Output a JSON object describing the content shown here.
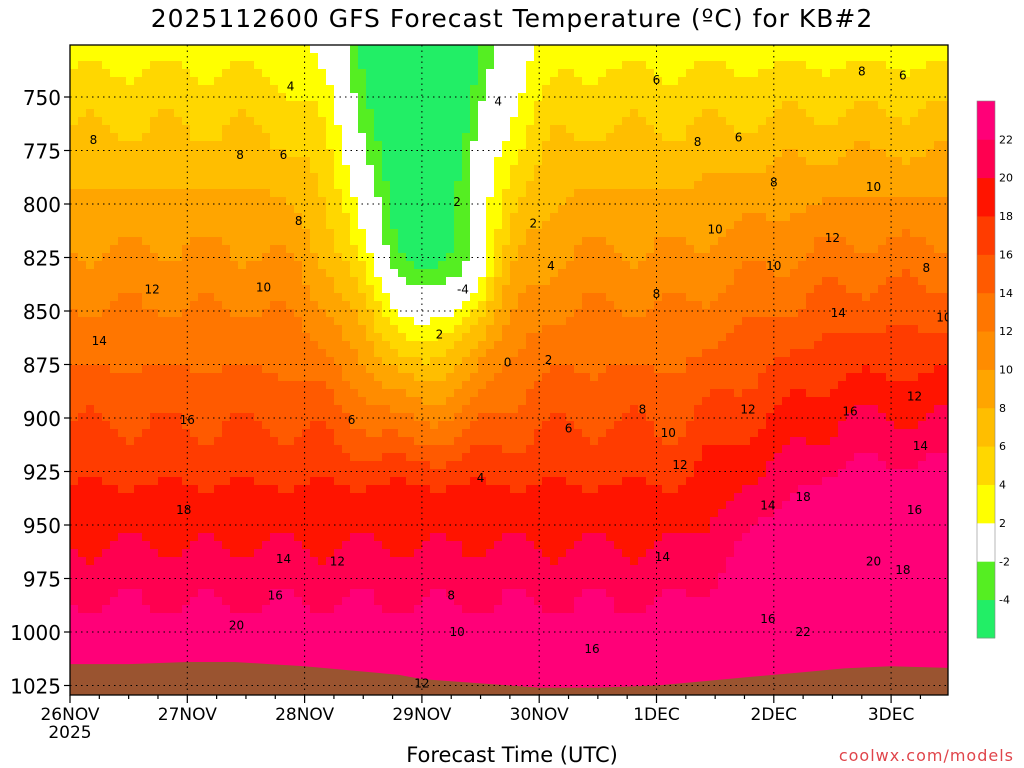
{
  "title": "2025112600 GFS Forecast Temperature (ºC) for KB#2",
  "xlabel": "Forecast Time (UTC)",
  "credit": "coolwx.com/models",
  "colors": {
    "ground": "#9a5430",
    "contour": "#000000",
    "freezing_contour": "#b0147a",
    "grid": "#000000"
  },
  "chart_data": {
    "type": "heatmap",
    "title": "2025112600 GFS Forecast Temperature (ºC) for KB#2",
    "xlabel": "Forecast Time (UTC)",
    "ylabel": "",
    "x_ticks": [
      "26NOV",
      "27NOV",
      "28NOV",
      "29NOV",
      "30NOV",
      "1DEC",
      "2DEC",
      "3DEC"
    ],
    "x_year_label": "2025",
    "xlim": [
      0,
      7.65
    ],
    "y_ticks": [
      750,
      775,
      800,
      825,
      850,
      875,
      900,
      925,
      950,
      975,
      1000,
      1025
    ],
    "ylim": [
      1028,
      730
    ],
    "grid": true,
    "colorbar": {
      "levels": [
        -6,
        -4,
        -2,
        2,
        4,
        6,
        8,
        10,
        12,
        14,
        16,
        18,
        20,
        22,
        24
      ],
      "colors": [
        "#22ee66",
        "#55ee22",
        "#ffffff",
        "#ffff00",
        "#ffd700",
        "#ffbe00",
        "#ffa500",
        "#ff8c00",
        "#ff7600",
        "#ff5a00",
        "#ff3c00",
        "#ff1400",
        "#ff0050",
        "#ff0078"
      ],
      "tick_labels": [
        "22",
        "20",
        "18",
        "16",
        "14",
        "12",
        "10",
        "8",
        "6",
        "4",
        "2",
        "-2",
        "-4"
      ]
    },
    "surface_pressure_hpa": [
      1015,
      1015,
      1014,
      1014,
      1015,
      1016,
      1018,
      1020,
      1022,
      1024,
      1026,
      1026,
      1025,
      1023,
      1021,
      1019,
      1017,
      1016,
      1017
    ],
    "surface_x_days": [
      0,
      0.5,
      1,
      1.4,
      1.7,
      2,
      2.4,
      2.8,
      3,
      3.5,
      4,
      4.5,
      5,
      5.4,
      5.8,
      6.2,
      6.6,
      7,
      7.65
    ],
    "contour_labels": [
      {
        "t": 1.88,
        "p": 745,
        "v": "4"
      },
      {
        "t": 3.65,
        "p": 752,
        "v": "4"
      },
      {
        "t": 5.0,
        "p": 742,
        "v": "6"
      },
      {
        "t": 6.75,
        "p": 738,
        "v": "8"
      },
      {
        "t": 7.1,
        "p": 740,
        "v": "6"
      },
      {
        "t": 0.2,
        "p": 770,
        "v": "8"
      },
      {
        "t": 1.45,
        "p": 777,
        "v": "8"
      },
      {
        "t": 1.82,
        "p": 777,
        "v": "6"
      },
      {
        "t": 5.35,
        "p": 771,
        "v": "8"
      },
      {
        "t": 5.7,
        "p": 769,
        "v": "6"
      },
      {
        "t": 6.0,
        "p": 790,
        "v": "8"
      },
      {
        "t": 6.85,
        "p": 792,
        "v": "10"
      },
      {
        "t": 3.3,
        "p": 799,
        "v": "2"
      },
      {
        "t": 3.95,
        "p": 809,
        "v": "2"
      },
      {
        "t": 1.95,
        "p": 808,
        "v": "8"
      },
      {
        "t": 5.5,
        "p": 812,
        "v": "10"
      },
      {
        "t": 6.5,
        "p": 816,
        "v": "12"
      },
      {
        "t": 7.3,
        "p": 830,
        "v": "8"
      },
      {
        "t": 4.1,
        "p": 829,
        "v": "4"
      },
      {
        "t": 3.35,
        "p": 840,
        "v": "-4"
      },
      {
        "t": 6.0,
        "p": 829,
        "v": "10"
      },
      {
        "t": 0.7,
        "p": 840,
        "v": "12"
      },
      {
        "t": 1.65,
        "p": 839,
        "v": "10"
      },
      {
        "t": 5.0,
        "p": 842,
        "v": "8"
      },
      {
        "t": 6.55,
        "p": 851,
        "v": "14"
      },
      {
        "t": 7.45,
        "p": 853,
        "v": "10"
      },
      {
        "t": 0.25,
        "p": 864,
        "v": "14"
      },
      {
        "t": 3.15,
        "p": 861,
        "v": "2"
      },
      {
        "t": 3.73,
        "p": 874,
        "v": "0"
      },
      {
        "t": 4.08,
        "p": 873,
        "v": "2"
      },
      {
        "t": 2.4,
        "p": 901,
        "v": "6"
      },
      {
        "t": 4.25,
        "p": 905,
        "v": "6"
      },
      {
        "t": 4.88,
        "p": 896,
        "v": "8"
      },
      {
        "t": 5.78,
        "p": 896,
        "v": "12"
      },
      {
        "t": 6.65,
        "p": 897,
        "v": "16"
      },
      {
        "t": 7.2,
        "p": 890,
        "v": "12"
      },
      {
        "t": 1.0,
        "p": 901,
        "v": "16"
      },
      {
        "t": 5.1,
        "p": 907,
        "v": "10"
      },
      {
        "t": 7.25,
        "p": 913,
        "v": "14"
      },
      {
        "t": 3.5,
        "p": 928,
        "v": "4"
      },
      {
        "t": 5.2,
        "p": 922,
        "v": "12"
      },
      {
        "t": 0.97,
        "p": 943,
        "v": "18"
      },
      {
        "t": 5.95,
        "p": 941,
        "v": "14"
      },
      {
        "t": 6.25,
        "p": 937,
        "v": "18"
      },
      {
        "t": 7.2,
        "p": 943,
        "v": "16"
      },
      {
        "t": 1.82,
        "p": 966,
        "v": "14"
      },
      {
        "t": 2.28,
        "p": 967,
        "v": "12"
      },
      {
        "t": 5.05,
        "p": 965,
        "v": "14"
      },
      {
        "t": 6.85,
        "p": 967,
        "v": "20"
      },
      {
        "t": 7.1,
        "p": 971,
        "v": "18"
      },
      {
        "t": 1.75,
        "p": 983,
        "v": "16"
      },
      {
        "t": 3.25,
        "p": 983,
        "v": "8"
      },
      {
        "t": 1.42,
        "p": 997,
        "v": "20"
      },
      {
        "t": 5.95,
        "p": 994,
        "v": "16"
      },
      {
        "t": 6.25,
        "p": 1000,
        "v": "22"
      },
      {
        "t": 3.3,
        "p": 1000,
        "v": "10"
      },
      {
        "t": 4.45,
        "p": 1008,
        "v": "16"
      },
      {
        "t": 3.0,
        "p": 1024,
        "v": "12"
      }
    ]
  }
}
